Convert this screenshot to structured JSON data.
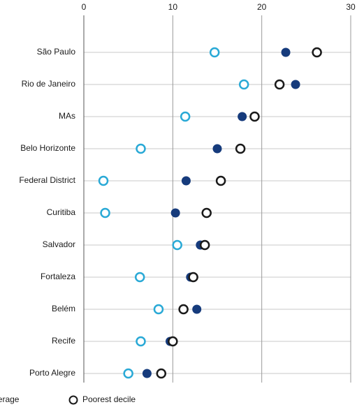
{
  "chart_data": {
    "type": "dot",
    "categories": [
      "São Paulo",
      "Rio de Janeiro",
      "MAs",
      "Belo Horizonte",
      "Federal District",
      "Curitiba",
      "Salvador",
      "Fortaleza",
      "Belém",
      "Recife",
      "Porto Alegre"
    ],
    "series": [
      {
        "color": "#29a9d6",
        "marker": "open",
        "values": [
          14.7,
          18.0,
          11.4,
          6.4,
          2.2,
          2.4,
          10.5,
          6.3,
          8.4,
          6.4,
          5.0
        ]
      },
      {
        "name": "Average",
        "color": "#163b7c",
        "marker": "filled",
        "values": [
          22.7,
          23.8,
          17.8,
          15.0,
          11.5,
          10.3,
          13.1,
          12.0,
          12.7,
          9.7,
          7.1
        ]
      },
      {
        "name": "Poorest decile",
        "color": "#1a1a1a",
        "marker": "open",
        "values": [
          26.2,
          22.0,
          19.2,
          17.6,
          15.4,
          13.8,
          13.6,
          12.3,
          11.2,
          10.0,
          8.7
        ]
      }
    ],
    "xlim": [
      0,
      30
    ],
    "xticks": [
      0,
      10,
      20,
      30
    ],
    "grid": true
  }
}
